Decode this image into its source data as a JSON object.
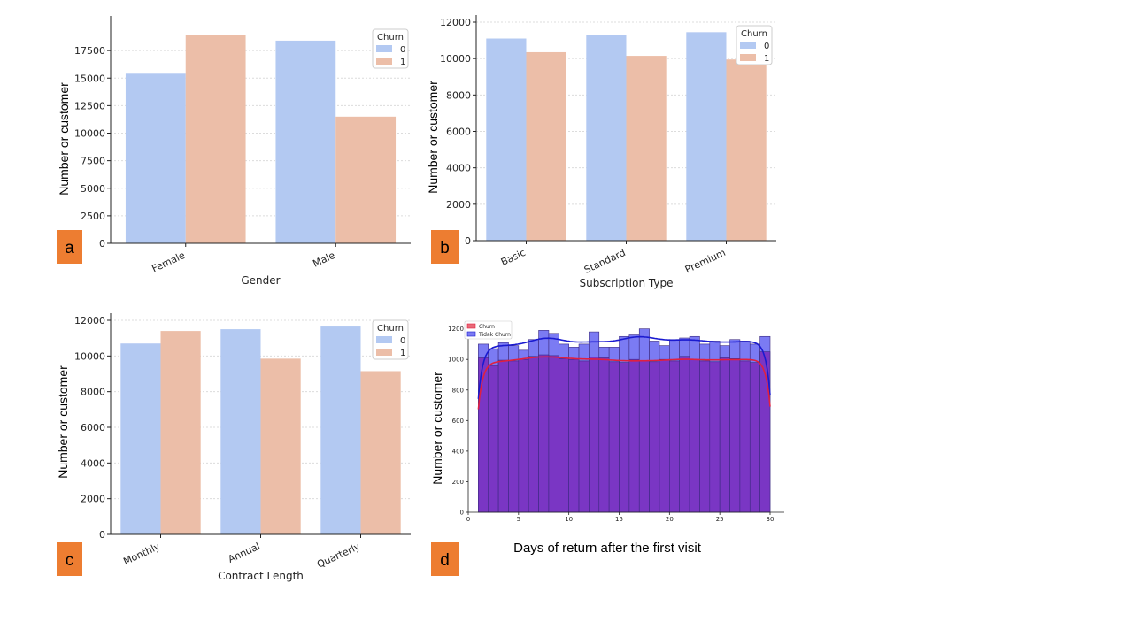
{
  "colors": {
    "no_churn": "#b3c9f2",
    "churn": "#ecbea8",
    "hist_tidak": "#7b7bf3",
    "hist_churn": "#7a36c4",
    "kde_tidak": "#1a1ad0",
    "kde_churn": "#e02040",
    "badge": "#ed7d31"
  },
  "chart_data": [
    {
      "panel": "a",
      "type": "bar",
      "xlabel": "Gender",
      "ylabel": "Number or customer",
      "categories": [
        "Female",
        "Male"
      ],
      "yticks": [
        0,
        2500,
        5000,
        7500,
        10000,
        12500,
        15000,
        17500
      ],
      "ylim": [
        0,
        20000
      ],
      "legend_title": "Churn",
      "series": [
        {
          "name": "0",
          "values": [
            15400,
            18400
          ]
        },
        {
          "name": "1",
          "values": [
            18900,
            11500
          ]
        }
      ]
    },
    {
      "panel": "b",
      "type": "bar",
      "xlabel": "Subscription Type",
      "ylabel": "Number or customer",
      "categories": [
        "Basic",
        "Standard",
        "Premium"
      ],
      "yticks": [
        0,
        2000,
        4000,
        6000,
        8000,
        10000,
        12000
      ],
      "ylim": [
        0,
        12000
      ],
      "legend_title": "Churn",
      "series": [
        {
          "name": "0",
          "values": [
            11100,
            11300,
            11450
          ]
        },
        {
          "name": "1",
          "values": [
            10350,
            10150,
            9950
          ]
        }
      ]
    },
    {
      "panel": "c",
      "type": "bar",
      "xlabel": "Contract Length",
      "ylabel": "Number or customer",
      "categories": [
        "Monthly",
        "Annual",
        "Quarterly"
      ],
      "yticks": [
        0,
        2000,
        4000,
        6000,
        8000,
        10000,
        12000
      ],
      "ylim": [
        0,
        12000
      ],
      "legend_title": "Churn",
      "series": [
        {
          "name": "0",
          "values": [
            10700,
            11500,
            11650
          ]
        },
        {
          "name": "1",
          "values": [
            11400,
            9850,
            9150
          ]
        }
      ]
    },
    {
      "panel": "d",
      "type": "histogram",
      "xlabel": "Days of return after the first visit",
      "ylabel": "Number or customer",
      "xticks": [
        0,
        5,
        10,
        15,
        20,
        25,
        30
      ],
      "yticks": [
        0,
        200,
        400,
        600,
        800,
        1000,
        1200
      ],
      "xlim": [
        0,
        30
      ],
      "ylim": [
        0,
        1250
      ],
      "bin_start": 1,
      "bin_width": 1,
      "legend_labels": [
        "Churn",
        "Tidak Churn"
      ],
      "series": [
        {
          "name": "Churn",
          "values": [
            1010,
            960,
            995,
            990,
            1000,
            1020,
            1030,
            1025,
            1005,
            1000,
            990,
            1015,
            1010,
            985,
            980,
            1000,
            990,
            985,
            1000,
            990,
            1020,
            1000,
            990,
            985,
            1010,
            1005,
            990,
            980,
            1050
          ]
        },
        {
          "name": "Tidak Churn",
          "values": [
            1100,
            1070,
            1110,
            1090,
            1060,
            1130,
            1190,
            1170,
            1100,
            1080,
            1100,
            1180,
            1080,
            1080,
            1150,
            1160,
            1200,
            1120,
            1090,
            1130,
            1140,
            1150,
            1100,
            1120,
            1090,
            1130,
            1120,
            1100,
            1150
          ]
        }
      ]
    }
  ],
  "badges": [
    "a",
    "b",
    "c",
    "d"
  ]
}
